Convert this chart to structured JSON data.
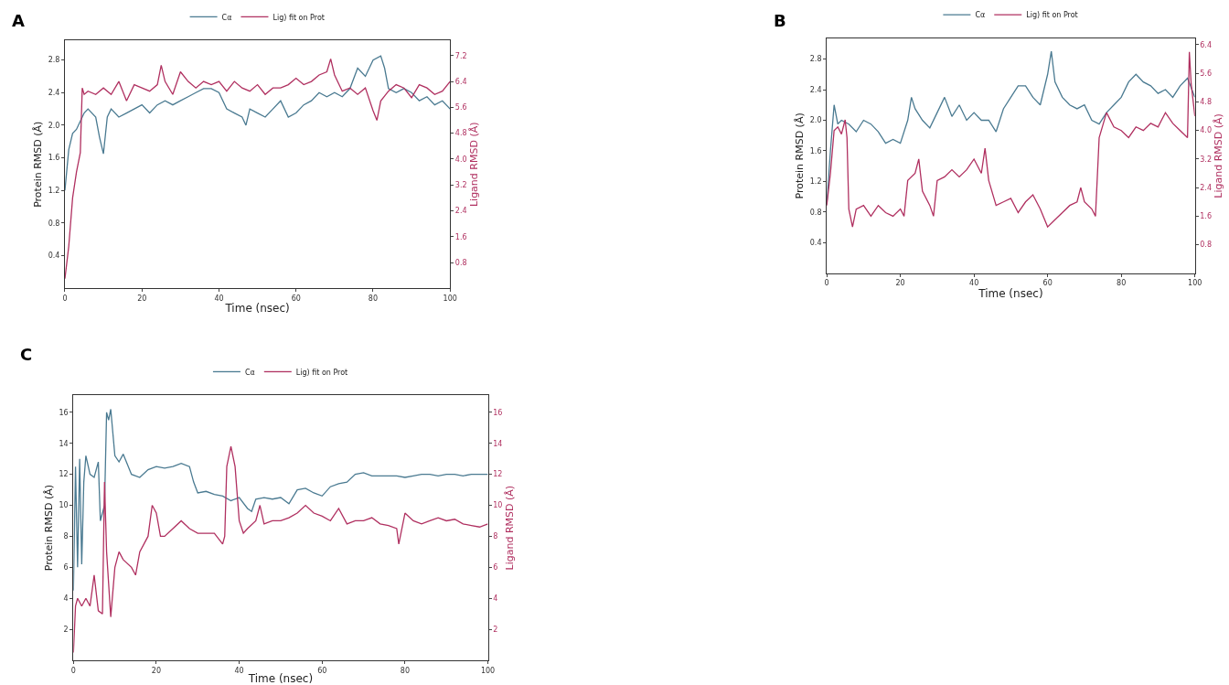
{
  "chart_data": [
    {
      "type": "line",
      "annotations": [
        "A"
      ],
      "xlabel": "Time (nsec)",
      "ylabel": "Protein RMSD (Å)",
      "y2label": "Ligand RMSD (Å)",
      "legend": "top",
      "grid": false,
      "xlim": [
        0,
        100
      ],
      "xticks": [
        0,
        20,
        40,
        60,
        80,
        100
      ],
      "ylim": [
        0,
        3.04
      ],
      "yticks": [
        0.4,
        0.8,
        1.2,
        1.6,
        {
          "value": 2,
          "label": "2.0"
        },
        2.4,
        2.8
      ],
      "y2lim": [
        0,
        7.67
      ],
      "y2ticks": [
        0.8,
        1.6,
        2.4,
        3.2,
        {
          "value": 4,
          "label": "4.0"
        },
        4.8,
        5.6,
        6.4,
        7.2
      ],
      "series": [
        {
          "name": "Cα",
          "color": "#4a7a91",
          "x": [
            0,
            1,
            2,
            3,
            4,
            5,
            6,
            8,
            9,
            10,
            11,
            12,
            14,
            16,
            18,
            20,
            22,
            24,
            26,
            28,
            30,
            32,
            34,
            36,
            38,
            40,
            42,
            44,
            46,
            47,
            48,
            50,
            52,
            54,
            56,
            58,
            60,
            62,
            64,
            66,
            68,
            70,
            72,
            74,
            76,
            78,
            80,
            82,
            83,
            84,
            86,
            88,
            90,
            92,
            94,
            96,
            98,
            100
          ],
          "values": [
            1.2,
            1.7,
            1.9,
            1.95,
            2.05,
            2.15,
            2.2,
            2.1,
            1.85,
            1.65,
            2.1,
            2.2,
            2.1,
            2.15,
            2.2,
            2.25,
            2.15,
            2.25,
            2.3,
            2.25,
            2.3,
            2.35,
            2.4,
            2.45,
            2.45,
            2.4,
            2.2,
            2.15,
            2.1,
            2.0,
            2.2,
            2.15,
            2.1,
            2.2,
            2.3,
            2.1,
            2.15,
            2.25,
            2.3,
            2.4,
            2.35,
            2.4,
            2.35,
            2.45,
            2.7,
            2.6,
            2.8,
            2.85,
            2.7,
            2.45,
            2.4,
            2.45,
            2.4,
            2.3,
            2.35,
            2.25,
            2.3,
            2.2
          ]
        },
        {
          "name": "Lig) fit on Prot",
          "color": "#b03060",
          "axis": "y2",
          "x": [
            0,
            1,
            2,
            3,
            4,
            4.5,
            5,
            6,
            8,
            10,
            12,
            14,
            16,
            18,
            20,
            22,
            24,
            25,
            26,
            28,
            30,
            32,
            34,
            36,
            38,
            40,
            42,
            44,
            46,
            48,
            50,
            52,
            54,
            56,
            58,
            60,
            62,
            64,
            66,
            68,
            69,
            70,
            72,
            74,
            76,
            78,
            80,
            81,
            82,
            84,
            86,
            88,
            90,
            92,
            94,
            96,
            98,
            100
          ],
          "values": [
            0.3,
            1.3,
            2.8,
            3.6,
            4.2,
            6.2,
            6.0,
            6.1,
            6.0,
            6.2,
            6.0,
            6.4,
            5.8,
            6.3,
            6.2,
            6.1,
            6.3,
            6.9,
            6.4,
            6.0,
            6.7,
            6.4,
            6.2,
            6.4,
            6.3,
            6.4,
            6.1,
            6.4,
            6.2,
            6.1,
            6.3,
            6.0,
            6.2,
            6.2,
            6.3,
            6.5,
            6.3,
            6.4,
            6.6,
            6.7,
            7.1,
            6.6,
            6.1,
            6.2,
            6.0,
            6.2,
            5.5,
            5.2,
            5.8,
            6.1,
            6.3,
            6.2,
            5.9,
            6.3,
            6.2,
            6.0,
            6.1,
            6.4
          ]
        }
      ]
    },
    {
      "type": "line",
      "annotations": [
        "B"
      ],
      "xlabel": "Time (nsec)",
      "ylabel": "Protein RMSD (Å)",
      "y2label": "Ligand RMSD (Å)",
      "legend": "top",
      "grid": false,
      "xlim": [
        0,
        100
      ],
      "xticks": [
        0,
        20,
        40,
        60,
        80,
        100
      ],
      "ylim": [
        0,
        3.07
      ],
      "yticks": [
        0.4,
        0.8,
        1.2,
        1.6,
        {
          "value": 2,
          "label": "2.0"
        },
        2.4,
        2.8
      ],
      "y2lim": [
        0,
        6.58
      ],
      "y2ticks": [
        0.8,
        1.6,
        2.4,
        3.2,
        {
          "value": 4,
          "label": "4.0"
        },
        4.8,
        5.6,
        6.4
      ],
      "series": [
        {
          "name": "Cα",
          "color": "#4a7a91",
          "x": [
            0,
            1,
            2,
            3,
            4,
            6,
            8,
            10,
            12,
            14,
            16,
            18,
            20,
            22,
            23,
            24,
            26,
            28,
            30,
            32,
            34,
            36,
            38,
            40,
            42,
            44,
            46,
            48,
            50,
            52,
            54,
            56,
            58,
            60,
            61,
            62,
            64,
            66,
            68,
            70,
            72,
            74,
            76,
            78,
            80,
            82,
            84,
            86,
            88,
            90,
            92,
            94,
            96,
            98,
            100
          ],
          "values": [
            0.9,
            1.6,
            2.2,
            1.95,
            2.0,
            1.95,
            1.85,
            2.0,
            1.95,
            1.85,
            1.7,
            1.75,
            1.7,
            2.0,
            2.3,
            2.15,
            2.0,
            1.9,
            2.1,
            2.3,
            2.05,
            2.2,
            2.0,
            2.1,
            2.0,
            2.0,
            1.85,
            2.15,
            2.3,
            2.45,
            2.45,
            2.3,
            2.2,
            2.6,
            2.9,
            2.5,
            2.3,
            2.2,
            2.15,
            2.2,
            2.0,
            1.95,
            2.1,
            2.2,
            2.3,
            2.5,
            2.6,
            2.5,
            2.45,
            2.35,
            2.4,
            2.3,
            2.45,
            2.55,
            2.3
          ]
        },
        {
          "name": "Lig) fit on Prot",
          "color": "#b03060",
          "axis": "y2",
          "x": [
            0,
            1,
            2,
            3,
            4,
            5,
            5.5,
            6,
            7,
            8,
            10,
            12,
            14,
            16,
            18,
            20,
            21,
            22,
            24,
            25,
            26,
            28,
            29,
            30,
            32,
            34,
            36,
            38,
            40,
            42,
            43,
            44,
            46,
            48,
            50,
            52,
            54,
            56,
            58,
            60,
            62,
            64,
            66,
            68,
            69,
            70,
            72,
            73,
            74,
            76,
            78,
            80,
            82,
            84,
            86,
            88,
            90,
            92,
            94,
            96,
            98,
            98.5,
            99,
            100
          ],
          "values": [
            1.9,
            2.8,
            4.0,
            4.1,
            3.9,
            4.3,
            3.8,
            1.8,
            1.3,
            1.8,
            1.9,
            1.6,
            1.9,
            1.7,
            1.6,
            1.8,
            1.6,
            2.6,
            2.8,
            3.2,
            2.3,
            1.9,
            1.6,
            2.6,
            2.7,
            2.9,
            2.7,
            2.9,
            3.2,
            2.8,
            3.5,
            2.6,
            1.9,
            2.0,
            2.1,
            1.7,
            2.0,
            2.2,
            1.8,
            1.3,
            1.5,
            1.7,
            1.9,
            2.0,
            2.4,
            2.0,
            1.8,
            1.6,
            3.8,
            4.5,
            4.1,
            4.0,
            3.8,
            4.1,
            4.0,
            4.2,
            4.1,
            4.5,
            4.2,
            4.0,
            3.8,
            6.2,
            5.3,
            4.4
          ]
        }
      ]
    },
    {
      "type": "line",
      "annotations": [
        "C"
      ],
      "xlabel": "Time (nsec)",
      "ylabel": "Protein RMSD (Å)",
      "y2label": "Ligand RMSD (Å)",
      "legend": "top",
      "grid": false,
      "xlim": [
        0,
        100
      ],
      "xticks": [
        0,
        20,
        40,
        60,
        80,
        100
      ],
      "ylim": [
        0,
        17.1
      ],
      "yticks": [
        2,
        4,
        6,
        8,
        10,
        12,
        14,
        16
      ],
      "y2lim": [
        0,
        17.1
      ],
      "y2ticks": [
        2,
        4,
        6,
        8,
        10,
        12,
        14,
        16
      ],
      "series": [
        {
          "name": "Cα",
          "color": "#4a7a91",
          "x": [
            0,
            0.5,
            1,
            1.5,
            2,
            2.5,
            3,
            4,
            5,
            6,
            6.5,
            7,
            7.5,
            8,
            8.5,
            9,
            10,
            11,
            12,
            14,
            16,
            18,
            20,
            22,
            24,
            26,
            28,
            29,
            30,
            32,
            34,
            36,
            38,
            40,
            42,
            43,
            44,
            46,
            48,
            50,
            52,
            54,
            56,
            58,
            60,
            62,
            64,
            66,
            68,
            70,
            72,
            74,
            76,
            78,
            80,
            82,
            84,
            86,
            88,
            90,
            92,
            94,
            96,
            98,
            100
          ],
          "values": [
            4.5,
            12.5,
            6,
            13,
            6.2,
            11.5,
            13.2,
            12,
            11.8,
            12.8,
            9,
            9.5,
            10,
            16,
            15.5,
            16.2,
            13.2,
            12.8,
            13.3,
            12,
            11.8,
            12.3,
            12.5,
            12.4,
            12.5,
            12.7,
            12.5,
            11.5,
            10.8,
            10.9,
            10.7,
            10.6,
            10.3,
            10.5,
            9.8,
            9.6,
            10.4,
            10.5,
            10.4,
            10.5,
            10.1,
            11.0,
            11.1,
            10.8,
            10.6,
            11.2,
            11.4,
            11.5,
            12.0,
            12.1,
            11.9,
            11.9,
            11.9,
            11.9,
            11.8,
            11.9,
            12.0,
            12.0,
            11.9,
            12.0,
            12.0,
            11.9,
            12.0,
            12.0,
            12.0
          ]
        },
        {
          "name": "Lig) fit on Prot",
          "color": "#b03060",
          "axis": "y2",
          "x": [
            0,
            0.5,
            1,
            2,
            3,
            4,
            5,
            6,
            7,
            7.5,
            8,
            9,
            10,
            11,
            12,
            14,
            15,
            16,
            18,
            19,
            20,
            21,
            22,
            24,
            26,
            28,
            30,
            32,
            34,
            36,
            36.5,
            37,
            38,
            39,
            40,
            41,
            42,
            44,
            45,
            46,
            48,
            50,
            52,
            54,
            56,
            58,
            60,
            62,
            64,
            66,
            68,
            70,
            72,
            74,
            76,
            78,
            78.5,
            80,
            82,
            84,
            86,
            88,
            90,
            92,
            94,
            96,
            98,
            100
          ],
          "values": [
            0.5,
            3.5,
            4,
            3.5,
            4,
            3.5,
            5.5,
            3.2,
            3.0,
            11.5,
            7,
            2.8,
            6,
            7,
            6.5,
            6,
            5.5,
            7,
            8,
            10,
            9.5,
            8,
            8,
            8.5,
            9,
            8.5,
            8.2,
            8.2,
            8.2,
            7.5,
            8,
            12.5,
            13.8,
            12.5,
            9,
            8.2,
            8.5,
            9,
            10,
            8.8,
            9,
            9,
            9.2,
            9.5,
            10,
            9.5,
            9.3,
            9.0,
            9.8,
            8.8,
            9,
            9,
            9.2,
            8.8,
            8.7,
            8.5,
            7.5,
            9.5,
            9,
            8.8,
            9,
            9.2,
            9,
            9.1,
            8.8,
            8.7,
            8.6,
            8.8
          ]
        }
      ]
    }
  ]
}
